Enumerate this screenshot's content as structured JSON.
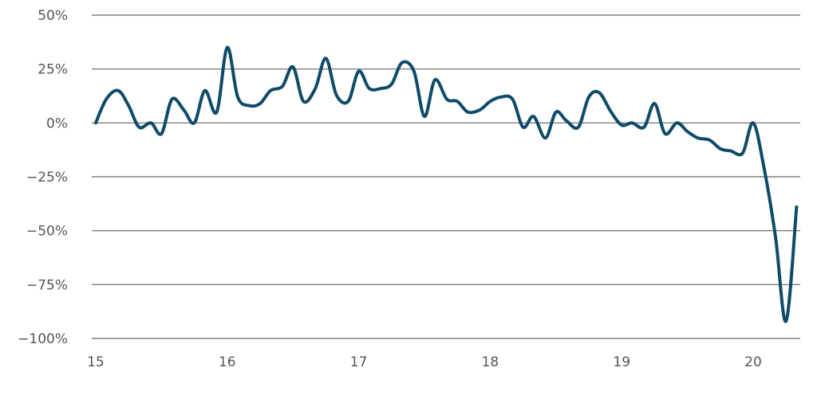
{
  "colors": {
    "line": "#0f4b69",
    "grid": "#666666",
    "text": "#555555",
    "background": "#ffffff"
  },
  "chart_data": {
    "type": "line",
    "title": "",
    "xlabel": "",
    "ylabel": "",
    "grid": "horizontal",
    "legend": "none",
    "xlim": [
      15,
      20.35
    ],
    "ylim": [
      -100,
      50
    ],
    "x_ticks": [
      "15",
      "16",
      "17",
      "18",
      "19",
      "20"
    ],
    "y_ticks": [
      "50%",
      "25%",
      "0%",
      "−25%",
      "−50%",
      "−75%",
      "−100%"
    ],
    "series": [
      {
        "name": "",
        "x": [
          15.0,
          15.08,
          15.17,
          15.25,
          15.33,
          15.42,
          15.5,
          15.58,
          15.67,
          15.75,
          15.83,
          15.92,
          16.0,
          16.08,
          16.17,
          16.25,
          16.33,
          16.42,
          16.5,
          16.58,
          16.67,
          16.75,
          16.83,
          16.92,
          17.0,
          17.08,
          17.17,
          17.25,
          17.33,
          17.42,
          17.5,
          17.58,
          17.67,
          17.75,
          17.83,
          17.92,
          18.0,
          18.08,
          18.17,
          18.25,
          18.33,
          18.42,
          18.5,
          18.58,
          18.67,
          18.75,
          18.83,
          18.92,
          19.0,
          19.08,
          19.17,
          19.25,
          19.33,
          19.42,
          19.5,
          19.58,
          19.67,
          19.75,
          19.83,
          19.92,
          20.0,
          20.08,
          20.17,
          20.25,
          20.33
        ],
        "values": [
          0,
          11,
          15,
          8,
          -2,
          0,
          -5,
          11,
          6,
          0,
          15,
          5,
          35,
          12,
          8,
          9,
          15,
          17,
          26,
          10,
          16,
          30,
          13,
          10,
          24,
          16,
          16,
          18,
          28,
          24,
          3,
          20,
          11,
          10,
          5,
          6,
          10,
          12,
          11,
          -2,
          3,
          -7,
          5,
          1,
          -2,
          12,
          14,
          5,
          -1,
          0,
          -2,
          9,
          -5,
          0,
          -4,
          -7,
          -8,
          -12,
          -13,
          -14,
          0,
          -20,
          -53,
          -92,
          -39
        ]
      }
    ]
  }
}
